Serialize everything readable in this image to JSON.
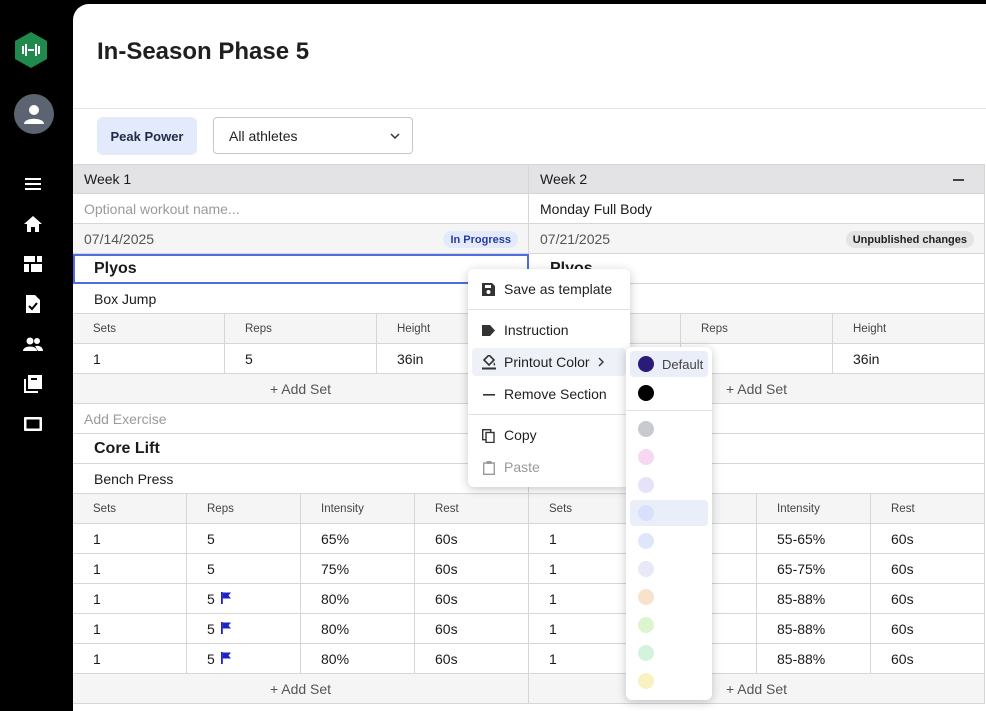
{
  "page": {
    "title": "In-Season Phase 5"
  },
  "filters": {
    "phase_chip": "Peak Power",
    "athlete_select": "All athletes"
  },
  "sidebar": {
    "items": [
      "menu-icon",
      "home-icon",
      "dashboard-icon",
      "workouts-icon",
      "team-icon",
      "library-icon",
      "display-icon"
    ]
  },
  "weeks": [
    {
      "label": "Week 1",
      "workout_name_placeholder": "Optional workout name...",
      "date": "07/14/2025",
      "status": "In Progress",
      "sections": [
        {
          "name": "Plyos",
          "exercise": "Box Jump",
          "headers": [
            "Sets",
            "Reps",
            "Height"
          ],
          "rows": [
            [
              "1",
              "5",
              "36in"
            ]
          ]
        },
        {
          "name": "Core Lift",
          "exercise": "Bench Press",
          "headers": [
            "Sets",
            "Reps",
            "Intensity",
            "Rest"
          ],
          "rows": [
            [
              "1",
              "5",
              "65%",
              "60s"
            ],
            [
              "1",
              "5",
              "75%",
              "60s"
            ],
            [
              "1",
              "5",
              "80%",
              "60s"
            ],
            [
              "1",
              "5",
              "80%",
              "60s"
            ],
            [
              "1",
              "5",
              "80%",
              "60s"
            ]
          ]
        }
      ],
      "add_set": "+ Add Set",
      "add_exercise": "Add Exercise"
    },
    {
      "label": "Week 2",
      "workout_name": "Monday Full Body",
      "date": "07/21/2025",
      "status": "Unpublished changes",
      "sections": [
        {
          "name": "Plyos",
          "headers": [
            "Reps",
            "Height"
          ],
          "rows": [
            [
              "36in"
            ]
          ]
        },
        {
          "headers": [
            "Sets",
            "Intensity",
            "Rest"
          ],
          "rows": [
            [
              "1",
              "55-65%",
              "60s"
            ],
            [
              "1",
              "65-75%",
              "60s"
            ],
            [
              "1",
              "85-88%",
              "60s"
            ],
            [
              "1",
              "85-88%",
              "60s"
            ],
            [
              "1",
              "85-88%",
              "60s"
            ]
          ]
        }
      ],
      "add_set": "+ Add Set"
    }
  ],
  "context_menu": {
    "items": [
      {
        "label": "Save as template",
        "icon": "save-icon"
      },
      {
        "label": "Instruction",
        "icon": "label-icon"
      },
      {
        "label": "Printout Color",
        "icon": "paint-bucket-icon",
        "submenu": true
      },
      {
        "label": "Remove Section",
        "icon": "minus-icon"
      },
      {
        "label": "Copy",
        "icon": "copy-icon"
      },
      {
        "label": "Paste",
        "icon": "paste-icon",
        "disabled": true
      }
    ],
    "submenu": {
      "default_label": "Default",
      "colors": [
        "#2a1a7a",
        "#000000",
        "#c8cad0",
        "#f6d9f0",
        "#e6e2fa",
        "#d7e1fb",
        "#dde6fb",
        "#e8e8f6",
        "#f8e1cd",
        "#ddf5cf",
        "#d4f3dc",
        "#f8f1c2"
      ]
    }
  }
}
